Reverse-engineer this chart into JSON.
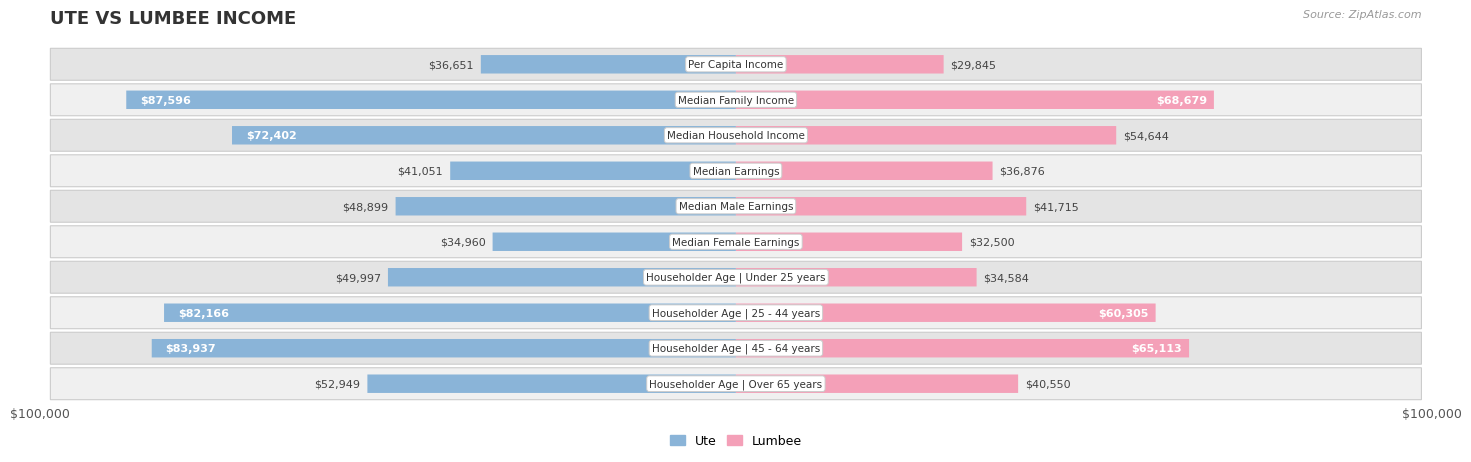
{
  "title": "UTE VS LUMBEE INCOME",
  "source": "Source: ZipAtlas.com",
  "categories": [
    "Per Capita Income",
    "Median Family Income",
    "Median Household Income",
    "Median Earnings",
    "Median Male Earnings",
    "Median Female Earnings",
    "Householder Age | Under 25 years",
    "Householder Age | 25 - 44 years",
    "Householder Age | 45 - 64 years",
    "Householder Age | Over 65 years"
  ],
  "ute_values": [
    36651,
    87596,
    72402,
    41051,
    48899,
    34960,
    49997,
    82166,
    83937,
    52949
  ],
  "lumbee_values": [
    29845,
    68679,
    54644,
    36876,
    41715,
    32500,
    34584,
    60305,
    65113,
    40550
  ],
  "ute_labels": [
    "$36,651",
    "$87,596",
    "$72,402",
    "$41,051",
    "$48,899",
    "$34,960",
    "$49,997",
    "$82,166",
    "$83,937",
    "$52,949"
  ],
  "lumbee_labels": [
    "$29,845",
    "$68,679",
    "$54,644",
    "$36,876",
    "$41,715",
    "$32,500",
    "$34,584",
    "$60,305",
    "$65,113",
    "$40,550"
  ],
  "ute_color": "#8ab4d8",
  "lumbee_color": "#f4a0b8",
  "max_value": 100000,
  "background_color": "#ffffff",
  "row_odd_color": "#f0f0f0",
  "row_even_color": "#e4e4e4",
  "axis_label": "$100,000"
}
